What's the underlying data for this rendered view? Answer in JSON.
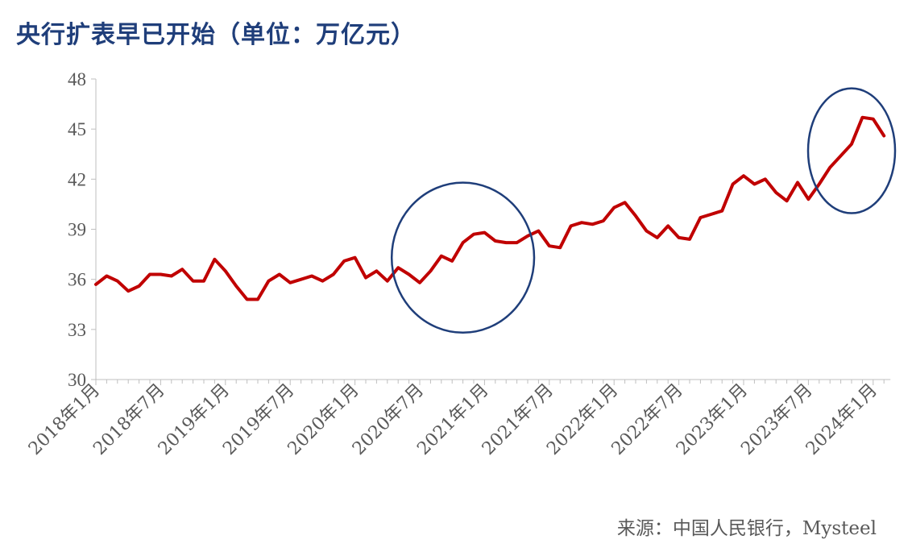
{
  "title": "央行扩表早已开始（单位：万亿元）",
  "source": "来源：中国人民银行，Mysteel",
  "chart_data": {
    "type": "line",
    "title": "央行扩表早已开始（单位：万亿元）",
    "ylabel": "",
    "xlabel": "",
    "ylim": [
      30,
      48
    ],
    "yticks": [
      30,
      33,
      36,
      39,
      42,
      45,
      48
    ],
    "xtick_labels": [
      "2018年1月",
      "2018年7月",
      "2019年1月",
      "2019年7月",
      "2020年1月",
      "2020年7月",
      "2021年1月",
      "2021年7月",
      "2022年1月",
      "2022年7月",
      "2023年1月",
      "2023年7月",
      "2024年1月"
    ],
    "grid": false,
    "line_color": "#C00000",
    "highlight_color": "#1F3E7A",
    "series": [
      {
        "name": "",
        "values": [
          35.7,
          36.2,
          35.9,
          35.3,
          35.6,
          36.3,
          36.3,
          36.2,
          36.6,
          35.9,
          35.9,
          37.2,
          36.5,
          35.6,
          34.8,
          34.8,
          35.9,
          36.3,
          35.8,
          36.0,
          36.2,
          35.9,
          36.3,
          37.1,
          37.3,
          36.1,
          36.5,
          35.9,
          36.7,
          36.3,
          35.8,
          36.5,
          37.4,
          37.1,
          38.2,
          38.7,
          38.8,
          38.3,
          38.2,
          38.2,
          38.6,
          38.9,
          38.0,
          37.9,
          39.2,
          39.4,
          39.3,
          39.5,
          40.3,
          40.6,
          39.8,
          38.9,
          38.5,
          39.2,
          38.5,
          38.4,
          39.7,
          39.9,
          40.1,
          41.7,
          42.2,
          41.7,
          42.0,
          41.2,
          40.7,
          41.8,
          40.8,
          41.7,
          42.7,
          43.4,
          44.1,
          45.7,
          45.6,
          44.6
        ]
      }
    ],
    "highlights": [
      {
        "from_index": 28,
        "to_index": 40
      },
      {
        "from_index": 67,
        "to_index": 73
      }
    ]
  }
}
